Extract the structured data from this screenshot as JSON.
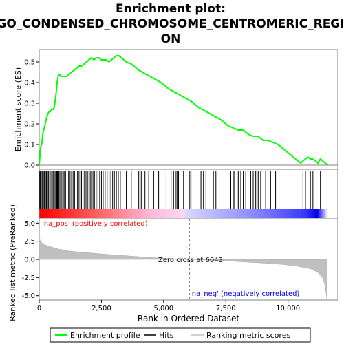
{
  "chart_data": {
    "type": "line",
    "title_lines": [
      "Enrichment plot:",
      "GO_CONDENSED_CHROMOSOME_CENTROMERIC_REGI",
      "ON"
    ],
    "top_panel": {
      "ylabel": "Enrichment score (ES)",
      "ylim": [
        -0.02,
        0.56
      ],
      "yticks": [
        0.0,
        0.1,
        0.2,
        0.3,
        0.4,
        0.5
      ],
      "ytick_labels": [
        "0.0",
        "0.1",
        "0.2",
        "0.3",
        "0.4",
        "0.5"
      ],
      "series": [
        {
          "name": "Enrichment profile",
          "color": "#00ff00",
          "points": [
            [
              0,
              0.0
            ],
            [
              30,
              0.05
            ],
            [
              60,
              0.09
            ],
            [
              100,
              0.1
            ],
            [
              140,
              0.15
            ],
            [
              180,
              0.17
            ],
            [
              220,
              0.19
            ],
            [
              260,
              0.21
            ],
            [
              300,
              0.23
            ],
            [
              350,
              0.25
            ],
            [
              400,
              0.26
            ],
            [
              450,
              0.26
            ],
            [
              500,
              0.27
            ],
            [
              550,
              0.27
            ],
            [
              600,
              0.28
            ],
            [
              640,
              0.31
            ],
            [
              680,
              0.35
            ],
            [
              720,
              0.4
            ],
            [
              760,
              0.43
            ],
            [
              800,
              0.44
            ],
            [
              900,
              0.43
            ],
            [
              1000,
              0.43
            ],
            [
              1100,
              0.43
            ],
            [
              1200,
              0.44
            ],
            [
              1300,
              0.45
            ],
            [
              1400,
              0.46
            ],
            [
              1500,
              0.47
            ],
            [
              1600,
              0.48
            ],
            [
              1700,
              0.48
            ],
            [
              1800,
              0.49
            ],
            [
              1900,
              0.5
            ],
            [
              2000,
              0.51
            ],
            [
              2100,
              0.52
            ],
            [
              2200,
              0.51
            ],
            [
              2300,
              0.52
            ],
            [
              2400,
              0.52
            ],
            [
              2500,
              0.51
            ],
            [
              2600,
              0.51
            ],
            [
              2700,
              0.51
            ],
            [
              2800,
              0.5
            ],
            [
              2900,
              0.51
            ],
            [
              3000,
              0.52
            ],
            [
              3100,
              0.53
            ],
            [
              3200,
              0.53
            ],
            [
              3300,
              0.52
            ],
            [
              3500,
              0.5
            ],
            [
              3700,
              0.49
            ],
            [
              4000,
              0.46
            ],
            [
              4300,
              0.44
            ],
            [
              4600,
              0.42
            ],
            [
              4900,
              0.4
            ],
            [
              5200,
              0.37
            ],
            [
              5500,
              0.35
            ],
            [
              5800,
              0.33
            ],
            [
              6100,
              0.31
            ],
            [
              6400,
              0.28
            ],
            [
              6700,
              0.26
            ],
            [
              7000,
              0.24
            ],
            [
              7300,
              0.22
            ],
            [
              7600,
              0.19
            ],
            [
              7800,
              0.18
            ],
            [
              8000,
              0.17
            ],
            [
              8200,
              0.17
            ],
            [
              8400,
              0.15
            ],
            [
              8600,
              0.14
            ],
            [
              8800,
              0.14
            ],
            [
              9000,
              0.12
            ],
            [
              9200,
              0.12
            ],
            [
              9400,
              0.11
            ],
            [
              9600,
              0.1
            ],
            [
              9800,
              0.08
            ],
            [
              10000,
              0.06
            ],
            [
              10200,
              0.04
            ],
            [
              10400,
              0.02
            ],
            [
              10500,
              0.01
            ],
            [
              10600,
              0.02
            ],
            [
              10700,
              0.03
            ],
            [
              10800,
              0.04
            ],
            [
              10900,
              0.03
            ],
            [
              11000,
              0.03
            ],
            [
              11100,
              0.02
            ],
            [
              11200,
              0.01
            ],
            [
              11300,
              0.03
            ],
            [
              11400,
              0.02
            ],
            [
              11500,
              0.01
            ],
            [
              11600,
              0.0
            ]
          ]
        }
      ]
    },
    "hits": [
      10,
      40,
      80,
      120,
      170,
      210,
      250,
      290,
      330,
      370,
      420,
      470,
      520,
      560,
      600,
      640,
      680,
      700,
      720,
      740,
      760,
      790,
      830,
      870,
      910,
      960,
      1000,
      1060,
      1120,
      1180,
      1240,
      1300,
      1360,
      1420,
      1480,
      1540,
      1600,
      1650,
      1700,
      1760,
      1820,
      1880,
      1940,
      2000,
      2050,
      2100,
      2160,
      2220,
      2290,
      2360,
      2430,
      2500,
      2570,
      2650,
      2730,
      2810,
      2880,
      2950,
      3020,
      3100,
      3180,
      3260,
      3500,
      3700,
      4000,
      4100,
      4250,
      4400,
      4600,
      4800,
      5100,
      5300,
      5400,
      5500,
      5550,
      5600,
      5800,
      6050,
      6100,
      6500,
      6600,
      6700,
      7000,
      7100,
      7700,
      7800,
      7850,
      7950,
      8000,
      8100,
      8200,
      8300,
      8500,
      8600,
      8700,
      8750,
      8800,
      8900,
      9100,
      9300,
      9500,
      10600,
      10700,
      10900,
      11000,
      11300
    ],
    "bottom_panel": {
      "ylabel": "Ranked list metric (PreRanked)",
      "ylim": [
        -5.6,
        5.6
      ],
      "yticks": [
        -5.0,
        -2.5,
        0.0,
        2.5,
        5.0
      ],
      "ytick_labels": [
        "-5.0",
        "-2.5",
        "0.0",
        "2.5",
        "5.0"
      ],
      "metric_points": [
        [
          0,
          3.0
        ],
        [
          50,
          2.5
        ],
        [
          150,
          2.2
        ],
        [
          300,
          1.9
        ],
        [
          500,
          1.7
        ],
        [
          800,
          1.4
        ],
        [
          1200,
          1.15
        ],
        [
          1800,
          0.95
        ],
        [
          2500,
          0.75
        ],
        [
          3500,
          0.5
        ],
        [
          4500,
          0.25
        ],
        [
          5500,
          0.08
        ],
        [
          6043,
          0.0
        ],
        [
          7000,
          -0.12
        ],
        [
          8000,
          -0.3
        ],
        [
          9000,
          -0.5
        ],
        [
          9800,
          -0.7
        ],
        [
          10400,
          -0.95
        ],
        [
          10900,
          -1.3
        ],
        [
          11200,
          -1.8
        ],
        [
          11400,
          -2.6
        ],
        [
          11500,
          -3.8
        ],
        [
          11560,
          -5.5
        ]
      ],
      "label_pos": "'na_pos' (positively correlated)",
      "label_neg": "'na_neg' (negatively correlated)",
      "zero_cross_label": "Zero cross at 6043",
      "zero_cross": 6043
    },
    "xlabel": "Rank in Ordered Dataset",
    "xlim": [
      0,
      12000
    ],
    "xticks": [
      0,
      2500,
      5000,
      7500,
      10000
    ],
    "xtick_labels": [
      "0",
      "2,500",
      "5,000",
      "7,500",
      "10,000"
    ],
    "n_ranks": 11600,
    "legend": {
      "placement": "bottom",
      "items": [
        {
          "label": "Enrichment profile",
          "color": "#00ff00"
        },
        {
          "label": "Hits",
          "color": "#000000"
        },
        {
          "label": "Ranking metric scores",
          "color": "#c0c0c0"
        }
      ]
    },
    "colors": {
      "profile": "#00ff00",
      "metric_fill": "#c0c0c0",
      "pos_label": "#ff0000",
      "neg_label": "#0000ff",
      "zero_cross": "#808080"
    }
  }
}
